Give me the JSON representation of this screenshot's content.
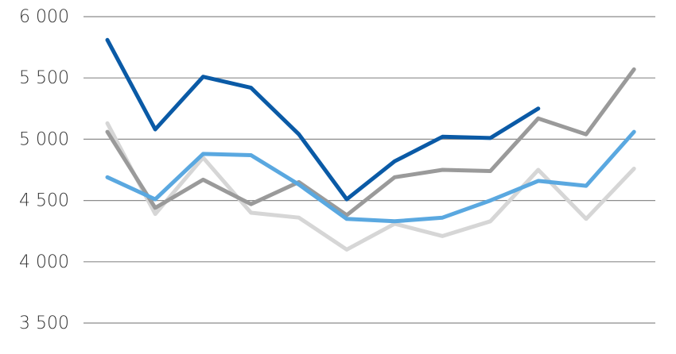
{
  "chart_data": {
    "type": "line",
    "title": "",
    "xlabel": "",
    "ylabel": "",
    "ylim": [
      3500,
      6000
    ],
    "yticks": [
      6000,
      5500,
      5000,
      4500,
      4000,
      3500
    ],
    "ytick_labels": [
      "6 000",
      "5 500",
      "5 000",
      "4 500",
      "4 000",
      "3 500"
    ],
    "x": [
      1,
      2,
      3,
      4,
      5,
      6,
      7,
      8,
      9,
      10,
      11,
      12
    ],
    "grid": "horizontal",
    "series": [
      {
        "color": "#d6d6d6",
        "values": [
          5130,
          4390,
          4850,
          4400,
          4360,
          4100,
          4310,
          4210,
          4330,
          4750,
          4350,
          4760
        ]
      },
      {
        "color": "#9a9a9a",
        "values": [
          5060,
          4440,
          4670,
          4470,
          4650,
          4380,
          4690,
          4750,
          4740,
          5170,
          5040,
          5570
        ]
      },
      {
        "color": "#5aa8e0",
        "values": [
          4690,
          4510,
          4880,
          4870,
          4630,
          4350,
          4330,
          4360,
          4500,
          4660,
          4620,
          5060
        ]
      },
      {
        "color": "#0a5aa6",
        "values": [
          5810,
          5080,
          5510,
          5420,
          5040,
          4510,
          4820,
          5020,
          5010,
          5250,
          null,
          null
        ]
      }
    ]
  }
}
